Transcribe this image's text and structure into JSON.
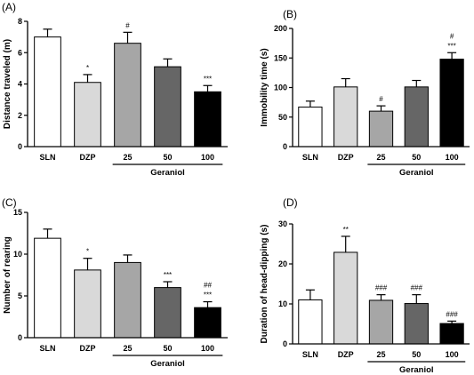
{
  "chart_data": [
    {
      "type": "bar",
      "panel": "(A)",
      "ylabel": "Distance traveled (m)",
      "categories": [
        "SLN",
        "DZP",
        "25",
        "50",
        "100"
      ],
      "group_label": "Geraniol",
      "values": [
        7.0,
        4.1,
        6.6,
        5.1,
        3.5
      ],
      "errors": [
        0.5,
        0.5,
        0.7,
        0.5,
        0.4
      ],
      "annotations": [
        "",
        "*",
        "#",
        "",
        "***"
      ],
      "bar_colors": [
        "#ffffff",
        "#d9d9d9",
        "#a6a6a6",
        "#666666",
        "#000000"
      ],
      "ylim": [
        0,
        8
      ],
      "yticks": [
        0,
        2,
        4,
        6,
        8
      ]
    },
    {
      "type": "bar",
      "panel": "(B)",
      "ylabel": "Immobility time (s)",
      "categories": [
        "SLN",
        "DZP",
        "25",
        "50",
        "100"
      ],
      "group_label": "Geraniol",
      "values": [
        67,
        101,
        60,
        101,
        148
      ],
      "errors": [
        10,
        14,
        9,
        11,
        11
      ],
      "annotations": [
        "",
        "",
        "#",
        "",
        "***\n#"
      ],
      "bar_colors": [
        "#ffffff",
        "#d9d9d9",
        "#a6a6a6",
        "#666666",
        "#000000"
      ],
      "ylim": [
        0,
        200
      ],
      "yticks": [
        0,
        50,
        100,
        150,
        200
      ]
    },
    {
      "type": "bar",
      "panel": "(C)",
      "ylabel": "Number of rearing",
      "categories": [
        "SLN",
        "DZP",
        "25",
        "50",
        "100"
      ],
      "group_label": "Geraniol",
      "values": [
        11.9,
        8.1,
        9.0,
        6.0,
        3.6
      ],
      "errors": [
        1.1,
        1.4,
        0.9,
        0.7,
        0.7
      ],
      "annotations": [
        "",
        "*",
        "",
        "***",
        "***\n##"
      ],
      "bar_colors": [
        "#ffffff",
        "#d9d9d9",
        "#a6a6a6",
        "#666666",
        "#000000"
      ],
      "ylim": [
        0,
        15
      ],
      "yticks": [
        0,
        5,
        10,
        15
      ]
    },
    {
      "type": "bar",
      "panel": "(D)",
      "ylabel": "Duration of head-dipping (s)",
      "categories": [
        "SLN",
        "DZP",
        "25",
        "50",
        "100"
      ],
      "group_label": "Geraniol",
      "values": [
        11.0,
        22.9,
        10.9,
        10.1,
        5.1
      ],
      "errors": [
        2.5,
        4.0,
        1.4,
        2.2,
        0.6
      ],
      "annotations": [
        "",
        "**",
        "###",
        "###",
        "###"
      ],
      "bar_colors": [
        "#ffffff",
        "#d9d9d9",
        "#a6a6a6",
        "#666666",
        "#000000"
      ],
      "ylim": [
        0,
        30
      ],
      "yticks": [
        0,
        10,
        20,
        30
      ]
    }
  ]
}
